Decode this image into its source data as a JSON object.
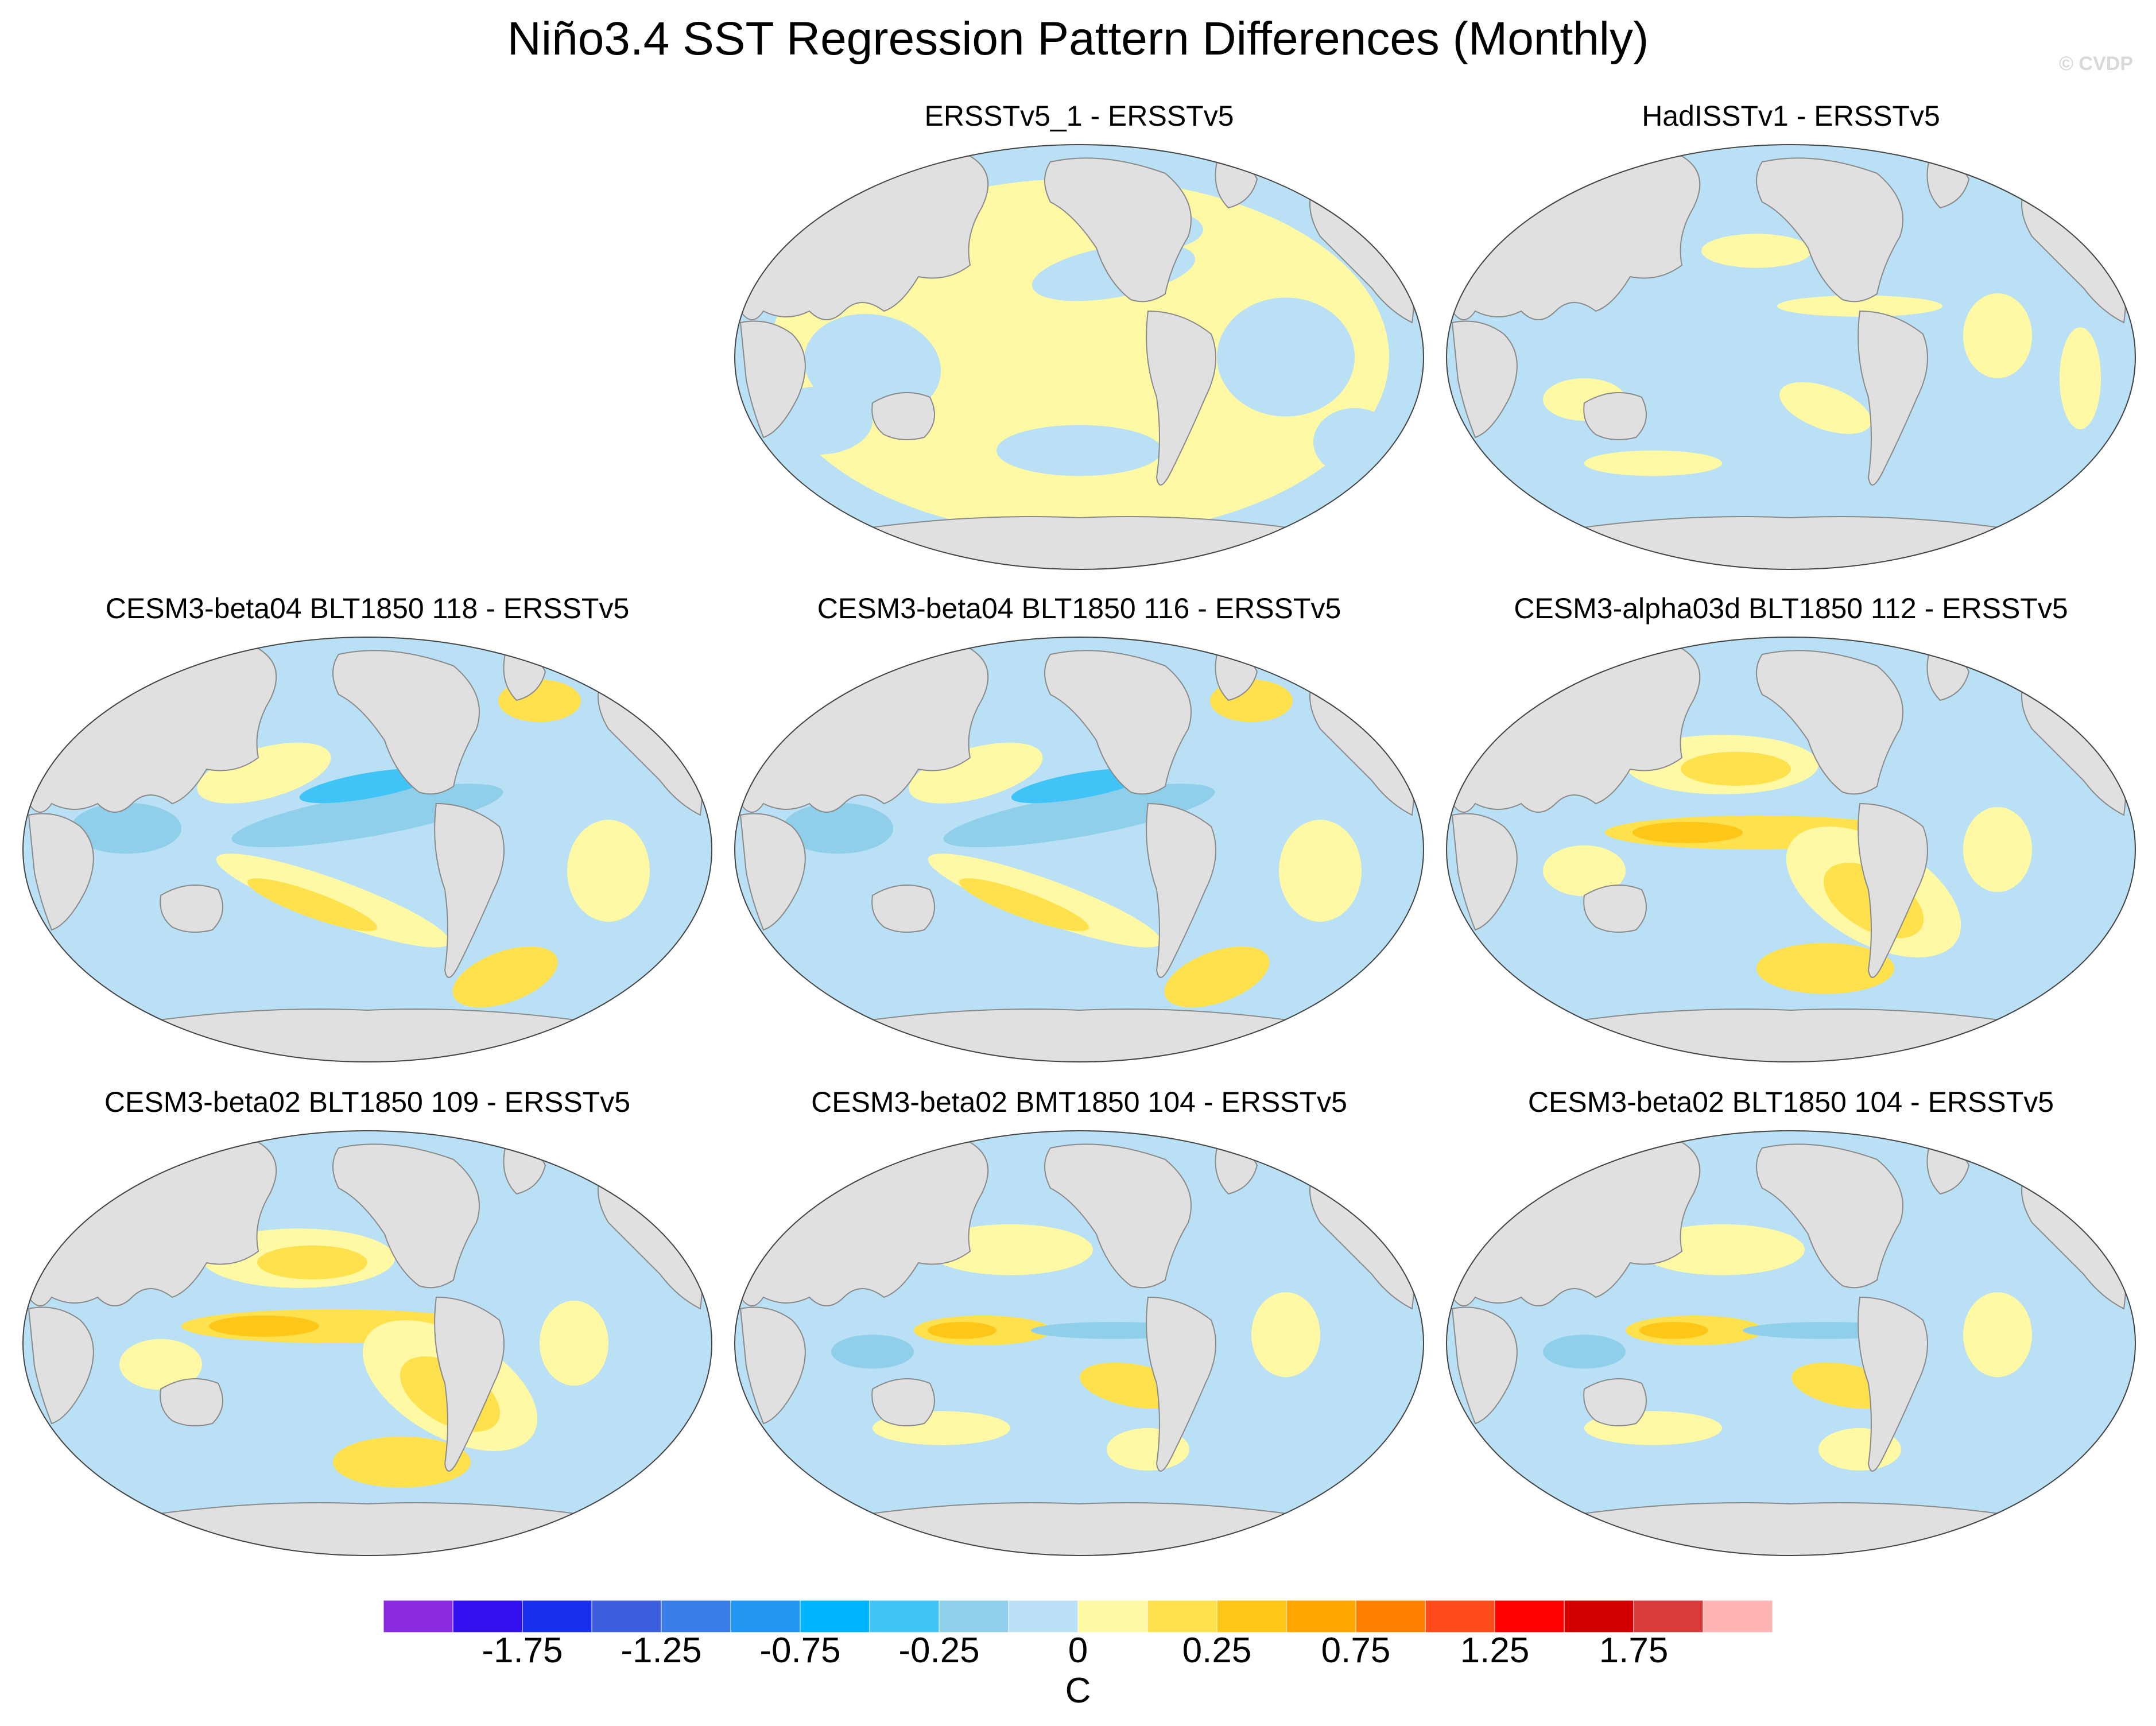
{
  "title": "Niño3.4 SST Regression Pattern Differences (Monthly)",
  "watermark": "© CVDP",
  "panels": [
    {
      "title": "ERSSTv5_1 - ERSSTv5",
      "pattern": "obs1"
    },
    {
      "title": "HadISSTv1 - ERSSTv5",
      "pattern": "obs2"
    },
    {
      "title": "CESM3-beta04 BLT1850 118 - ERSSTv5",
      "pattern": "cold"
    },
    {
      "title": "CESM3-beta04 BLT1850 116 - ERSSTv5",
      "pattern": "cold"
    },
    {
      "title": "CESM3-alpha03d BLT1850 112 - ERSSTv5",
      "pattern": "warm"
    },
    {
      "title": "CESM3-beta02 BLT1850 109 - ERSSTv5",
      "pattern": "warm"
    },
    {
      "title": "CESM3-beta02 BMT1850 104 - ERSSTv5",
      "pattern": "mixed"
    },
    {
      "title": "CESM3-beta02 BLT1850 104 - ERSSTv5",
      "pattern": "mixed"
    }
  ],
  "colorbar": {
    "colors": [
      "#8a2be2",
      "#3311ee",
      "#1a2fee",
      "#3d5fdf",
      "#3b7de8",
      "#2196f3",
      "#00b4ff",
      "#40c4f8",
      "#90cfe9",
      "#b9e0f4",
      "#fff9a6",
      "#ffe14d",
      "#ffc61a",
      "#ffa600",
      "#ff7f00",
      "#ff4c1a",
      "#ff0000",
      "#d20000",
      "#d83b3b",
      "#ffb3b3"
    ],
    "labels": [
      "-1.75",
      "-1.25",
      "-0.75",
      "-0.25",
      "0",
      "0.25",
      "0.75",
      "1.25",
      "1.75"
    ],
    "units": "C"
  }
}
